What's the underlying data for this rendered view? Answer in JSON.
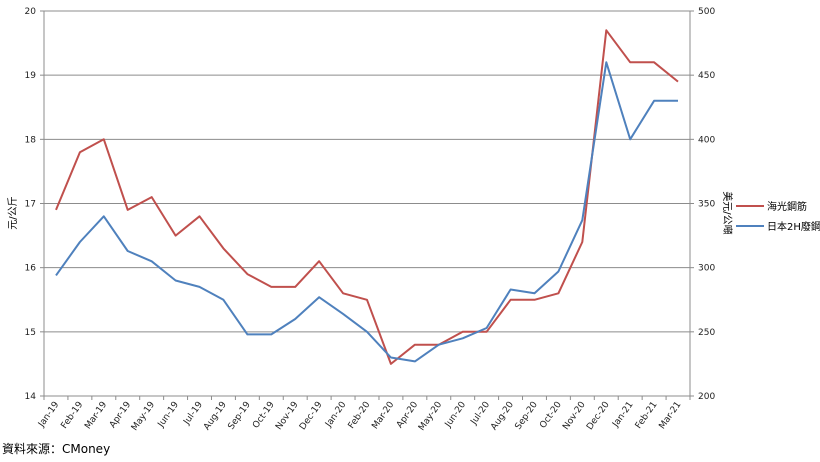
{
  "chart_data": {
    "type": "line",
    "categories": [
      "Jan-19",
      "Feb-19",
      "Mar-19",
      "Apr-19",
      "May-19",
      "Jun-19",
      "Jul-19",
      "Aug-19",
      "Sep-19",
      "Oct-19",
      "Nov-19",
      "Dec-19",
      "Jan-20",
      "Feb-20",
      "Mar-20",
      "Apr-20",
      "May-20",
      "Jun-20",
      "Jul-20",
      "Aug-20",
      "Sep-20",
      "Oct-20",
      "Nov-20",
      "Dec-20",
      "Jan-21",
      "Feb-21",
      "Mar-21"
    ],
    "ylabel_left": "元/公斤",
    "ylabel_right": "美元/公噸",
    "ylim_left": [
      14,
      20
    ],
    "ylim_right": [
      200,
      500
    ],
    "yticks_left": [
      14,
      15,
      16,
      17,
      18,
      19,
      20
    ],
    "yticks_right": [
      200,
      250,
      300,
      350,
      400,
      450,
      500
    ],
    "grid": true,
    "legend_position": "right",
    "series": [
      {
        "name": "海光鋼筋",
        "axis": "left",
        "color": "#C0504D",
        "values": [
          16.9,
          17.8,
          18.0,
          16.9,
          17.1,
          16.5,
          16.8,
          16.3,
          15.9,
          15.7,
          15.7,
          16.1,
          15.6,
          15.5,
          14.5,
          14.8,
          14.8,
          15.0,
          15.0,
          15.5,
          15.5,
          15.6,
          16.4,
          19.7,
          19.2,
          19.2,
          18.9
        ]
      },
      {
        "name": "日本2H廢鋼",
        "axis": "right",
        "color": "#4F81BD",
        "values": [
          294,
          320,
          340,
          313,
          305,
          290,
          285,
          275,
          248,
          248,
          260,
          277,
          264,
          250,
          230,
          227,
          240,
          245,
          253,
          283,
          280,
          297,
          337,
          460,
          400,
          430,
          430
        ]
      }
    ]
  },
  "source": "資料來源：CMoney"
}
